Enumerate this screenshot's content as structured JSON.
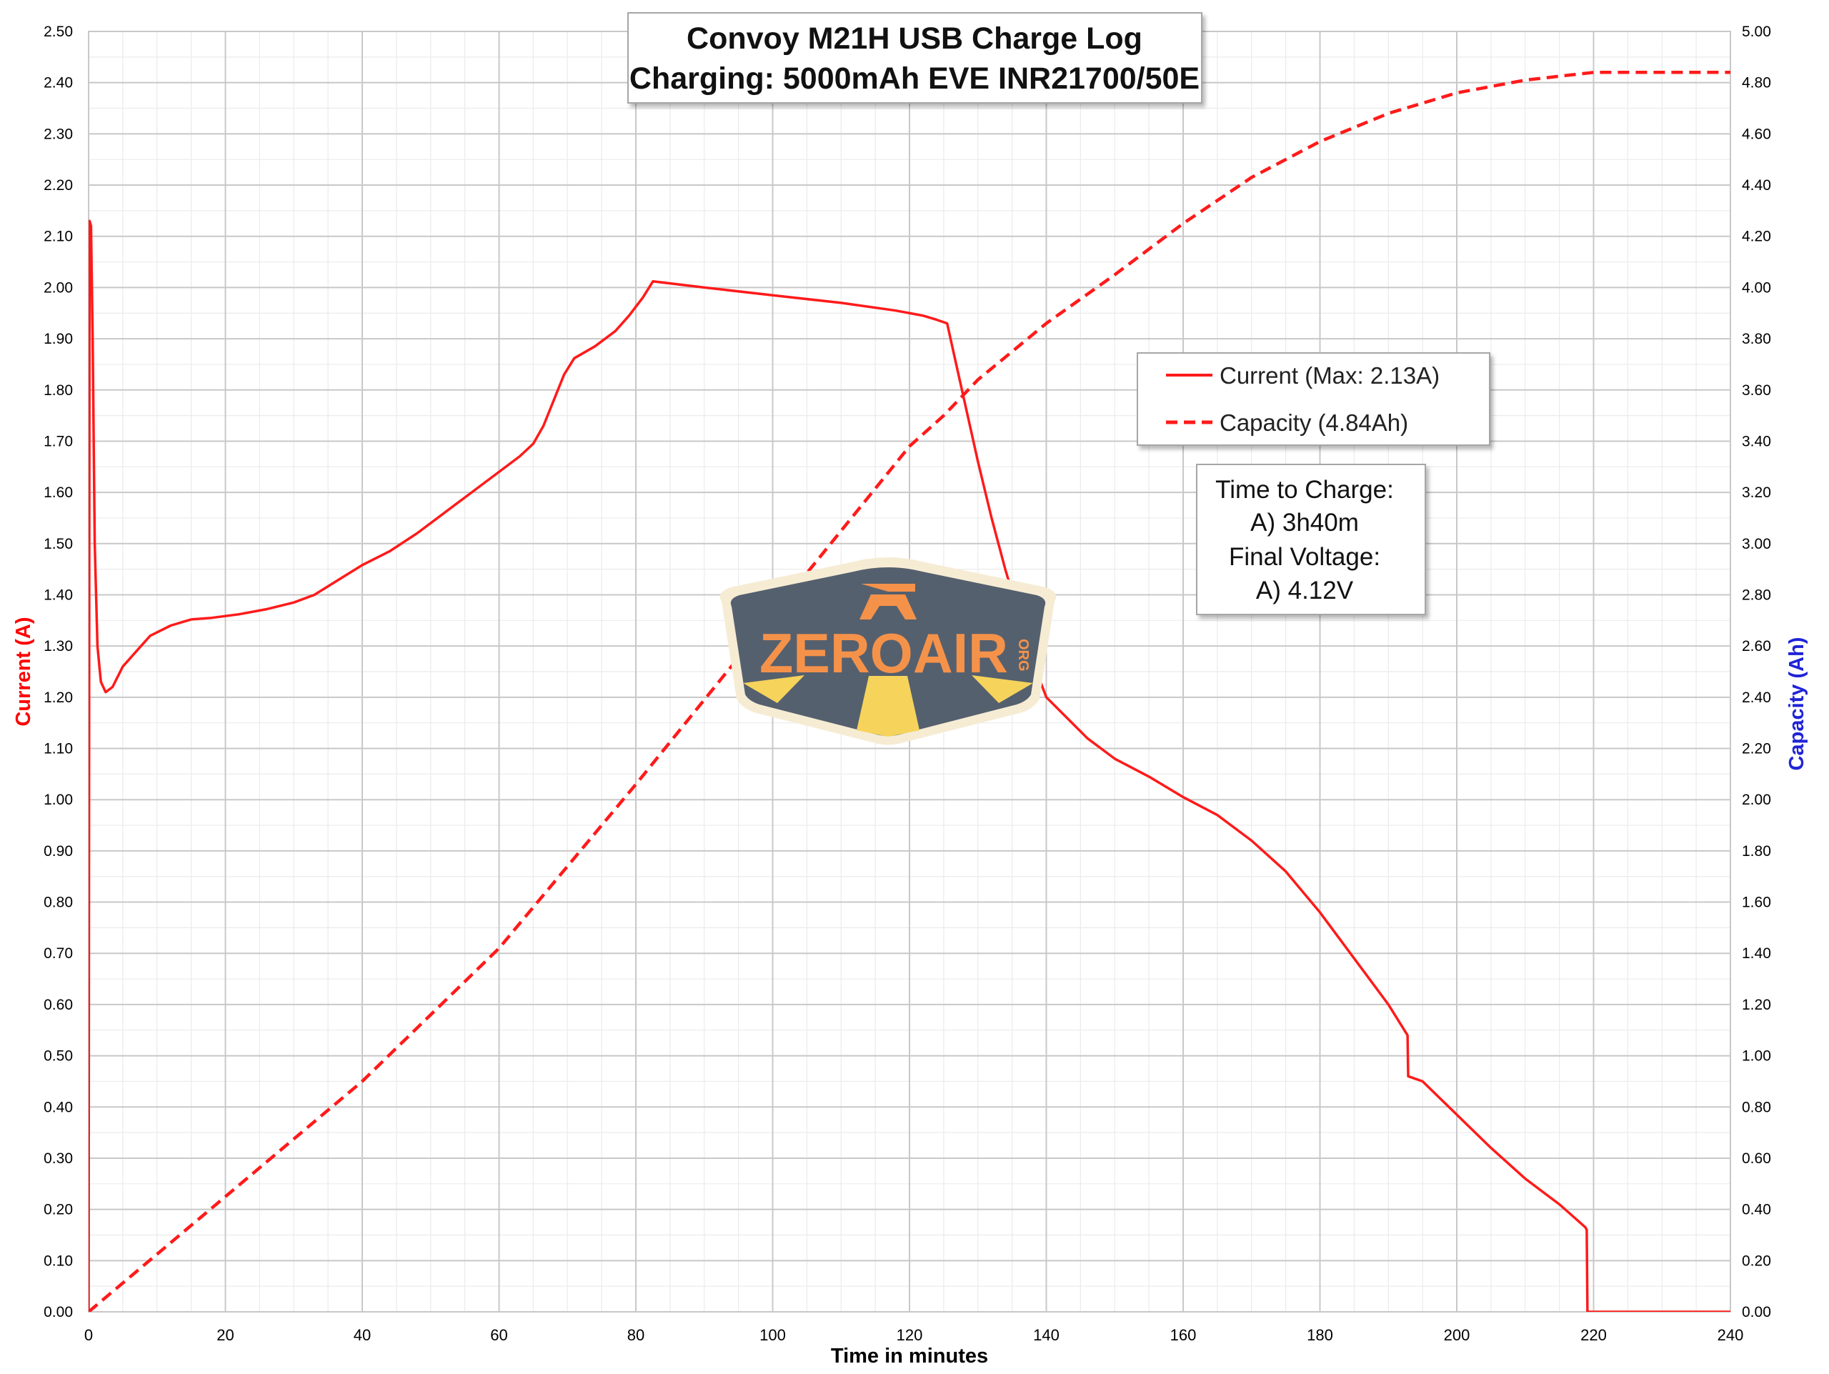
{
  "chart_data": {
    "type": "line",
    "title": "Convoy M21H USB Charge Log",
    "subtitle": "Charging: 5000mAh EVE INR21700/50E",
    "xlabel": "Time in minutes",
    "ylabel": "Current (A)",
    "y2label": "Capacity (Ah)",
    "xlim": [
      0,
      240
    ],
    "ylim": [
      0,
      2.5
    ],
    "y2lim": [
      0,
      5.0
    ],
    "x_ticks": [
      "0",
      "20",
      "40",
      "60",
      "80",
      "100",
      "120",
      "140",
      "160",
      "180",
      "200",
      "220",
      "240"
    ],
    "y_ticks": [
      "0.00",
      "0.10",
      "0.20",
      "0.30",
      "0.40",
      "0.50",
      "0.60",
      "0.70",
      "0.80",
      "0.90",
      "1.00",
      "1.10",
      "1.20",
      "1.30",
      "1.40",
      "1.50",
      "1.60",
      "1.70",
      "1.80",
      "1.90",
      "2.00",
      "2.10",
      "2.20",
      "2.30",
      "2.40",
      "2.50"
    ],
    "y2_ticks": [
      "0.00",
      "0.20",
      "0.40",
      "0.60",
      "0.80",
      "1.00",
      "1.20",
      "1.40",
      "1.60",
      "1.80",
      "2.00",
      "2.20",
      "2.40",
      "2.60",
      "2.80",
      "3.00",
      "3.20",
      "3.40",
      "3.60",
      "3.80",
      "4.00",
      "4.20",
      "4.40",
      "4.60",
      "4.80",
      "5.00"
    ],
    "grid": true,
    "legend": "right",
    "series": [
      {
        "name": "Current (Max: 2.13A)",
        "axis": "left",
        "style": "solid",
        "color": "#ff1a1a",
        "points": [
          [
            0,
            0
          ],
          [
            0.15,
            2.13
          ],
          [
            0.35,
            2.12
          ],
          [
            0.6,
            1.9
          ],
          [
            0.9,
            1.5
          ],
          [
            1.3,
            1.3
          ],
          [
            1.8,
            1.23
          ],
          [
            2.5,
            1.21
          ],
          [
            3.5,
            1.22
          ],
          [
            5,
            1.26
          ],
          [
            7,
            1.29
          ],
          [
            9,
            1.32
          ],
          [
            12,
            1.34
          ],
          [
            15,
            1.352
          ],
          [
            18,
            1.355
          ],
          [
            22,
            1.362
          ],
          [
            26,
            1.372
          ],
          [
            30,
            1.385
          ],
          [
            33,
            1.4
          ],
          [
            36,
            1.425
          ],
          [
            40,
            1.458
          ],
          [
            44,
            1.485
          ],
          [
            48,
            1.52
          ],
          [
            52,
            1.56
          ],
          [
            56,
            1.6
          ],
          [
            60,
            1.64
          ],
          [
            63,
            1.67
          ],
          [
            65,
            1.695
          ],
          [
            66.5,
            1.73
          ],
          [
            68,
            1.78
          ],
          [
            69.5,
            1.83
          ],
          [
            71,
            1.862
          ],
          [
            74,
            1.885
          ],
          [
            77,
            1.915
          ],
          [
            79,
            1.945
          ],
          [
            81,
            1.98
          ],
          [
            82.5,
            2.012
          ],
          [
            90,
            2.0
          ],
          [
            100,
            1.985
          ],
          [
            110,
            1.97
          ],
          [
            118,
            1.955
          ],
          [
            122,
            1.945
          ],
          [
            124,
            1.937
          ],
          [
            125.5,
            1.93
          ],
          [
            126.5,
            1.87
          ],
          [
            128,
            1.78
          ],
          [
            130,
            1.66
          ],
          [
            132,
            1.55
          ],
          [
            134,
            1.45
          ],
          [
            136,
            1.36
          ],
          [
            138,
            1.27
          ],
          [
            140,
            1.2
          ],
          [
            143,
            1.16
          ],
          [
            146,
            1.12
          ],
          [
            150,
            1.08
          ],
          [
            155,
            1.045
          ],
          [
            160,
            1.005
          ],
          [
            165,
            0.97
          ],
          [
            170,
            0.92
          ],
          [
            175,
            0.86
          ],
          [
            180,
            0.78
          ],
          [
            185,
            0.69
          ],
          [
            190,
            0.6
          ],
          [
            192.8,
            0.54
          ],
          [
            192.9,
            0.46
          ],
          [
            195,
            0.45
          ],
          [
            200,
            0.385
          ],
          [
            205,
            0.32
          ],
          [
            210,
            0.26
          ],
          [
            215,
            0.21
          ],
          [
            218.8,
            0.165
          ],
          [
            219,
            0.16
          ],
          [
            219.1,
            0
          ],
          [
            240,
            0
          ]
        ]
      },
      {
        "name": "Capacity (4.84Ah)",
        "axis": "right",
        "style": "dashed",
        "color": "#ff1a1a",
        "points": [
          [
            0,
            0
          ],
          [
            20,
            0.45
          ],
          [
            40,
            0.9
          ],
          [
            60,
            1.42
          ],
          [
            80,
            2.06
          ],
          [
            100,
            2.72
          ],
          [
            120,
            3.38
          ],
          [
            125,
            3.5
          ],
          [
            130,
            3.64
          ],
          [
            140,
            3.86
          ],
          [
            150,
            4.05
          ],
          [
            160,
            4.25
          ],
          [
            170,
            4.43
          ],
          [
            180,
            4.57
          ],
          [
            190,
            4.68
          ],
          [
            200,
            4.76
          ],
          [
            210,
            4.81
          ],
          [
            220,
            4.84
          ],
          [
            240,
            4.84
          ]
        ]
      }
    ],
    "annotations": [
      "Time to Charge:",
      "A) 3h40m",
      "Final Voltage:",
      "A) 4.12V"
    ],
    "watermark": "ZEROAIR.ORG"
  },
  "colors": {
    "current": "#ff1a1a",
    "capacity": "#ff1a1a",
    "left_axis_title": "#ff0000",
    "right_axis_title": "#1f24d6",
    "logo_dark": "#55606e",
    "logo_orange": "#f5924a",
    "logo_yellow": "#f6d35b",
    "logo_cream": "#f6ecd4"
  },
  "logo": {
    "text": "ZEROAIR",
    "suffix": "ORG"
  }
}
